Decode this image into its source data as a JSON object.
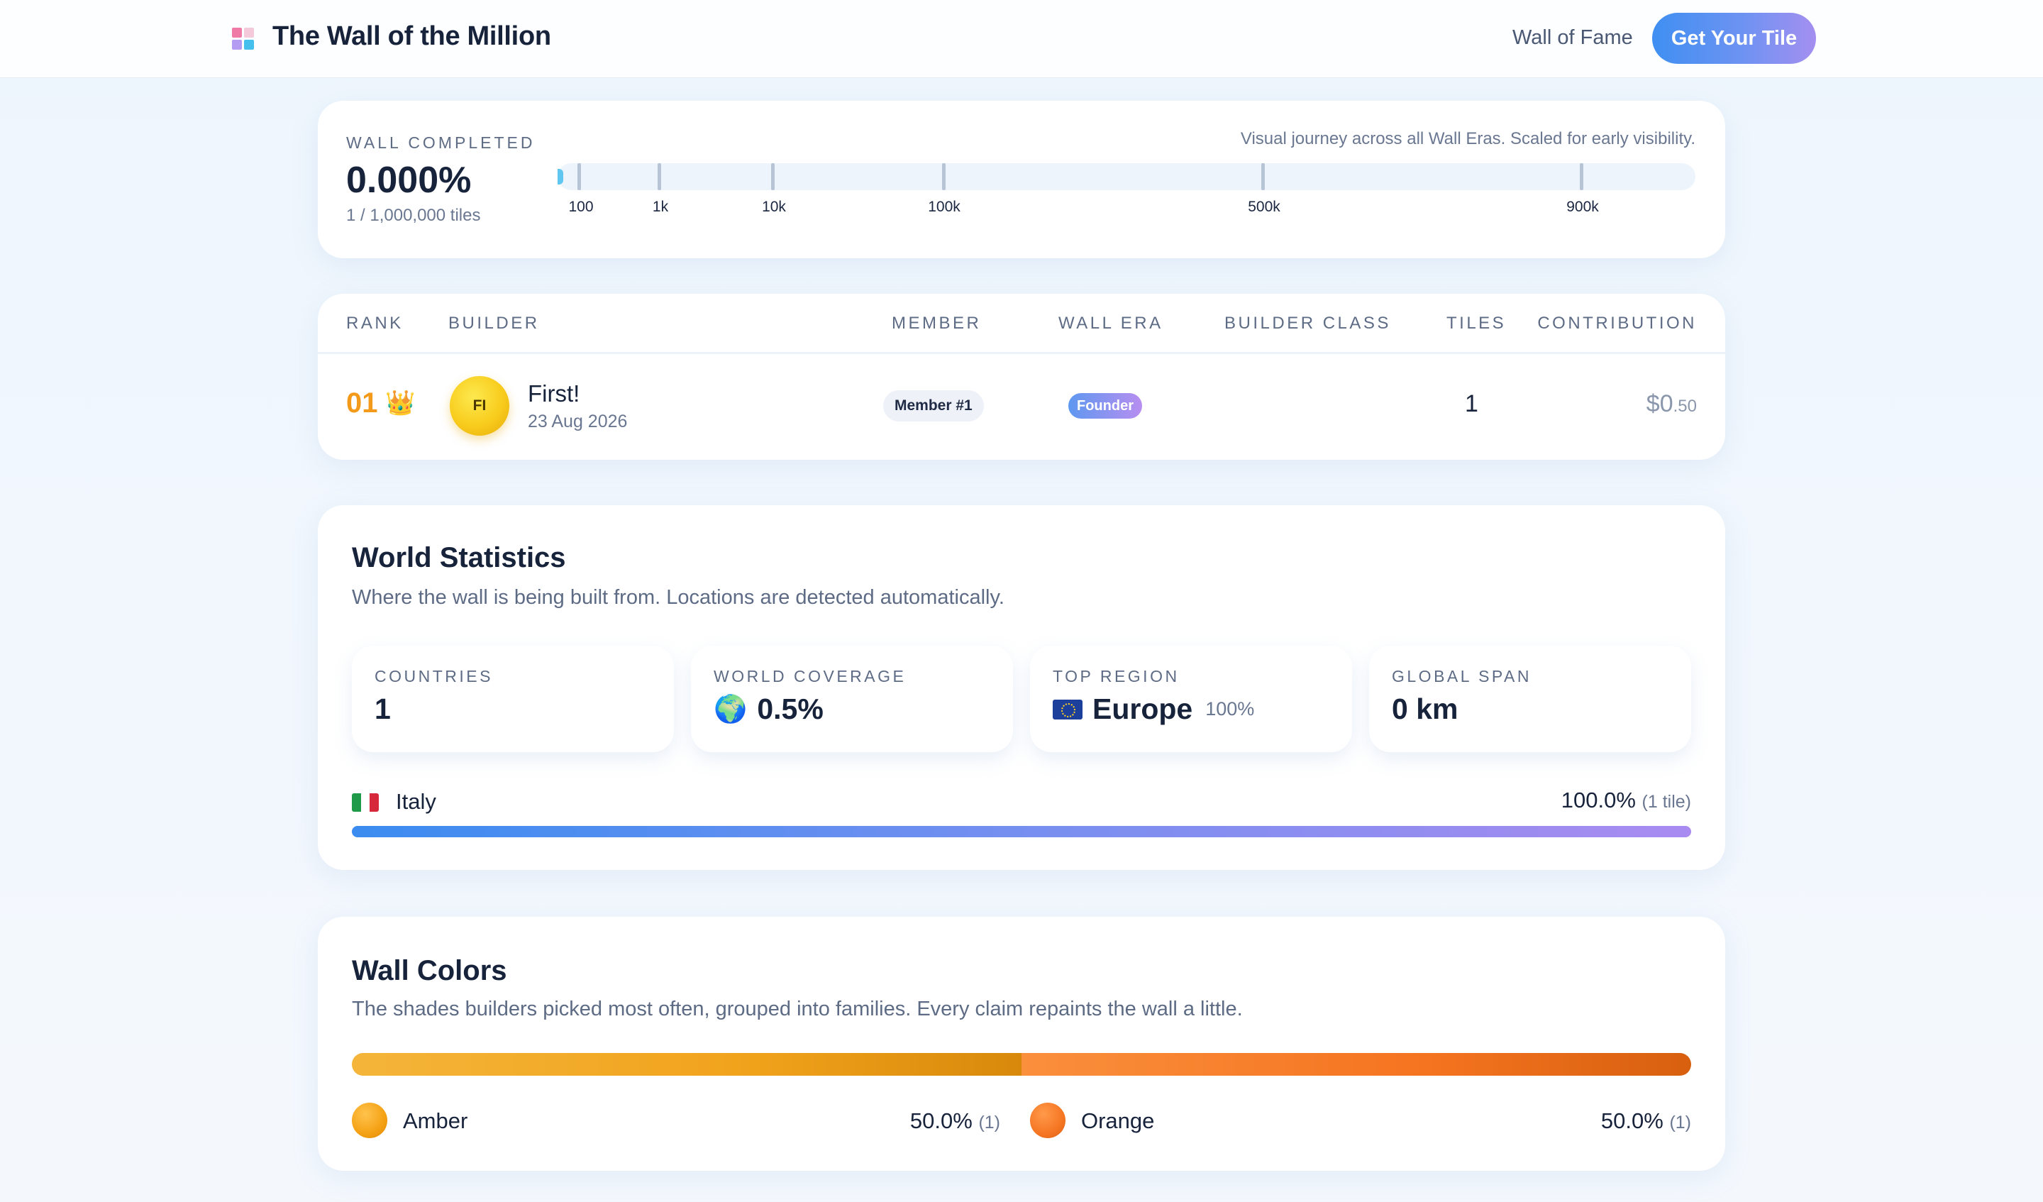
{
  "header": {
    "title": "The Wall of the Million",
    "nav_link": "Wall of Fame",
    "cta_label": "Get Your Tile"
  },
  "progress": {
    "label": "WALL COMPLETED",
    "value": "0.000%",
    "tiles_text": "1 / 1,000,000 tiles",
    "caption": "Visual journey across all Wall Eras. Scaled for early visibility.",
    "milestones": [
      "100",
      "1k",
      "10k",
      "100k",
      "500k",
      "900k"
    ],
    "fill_fraction": 1e-06
  },
  "leaderboard": {
    "columns": {
      "rank": "RANK",
      "builder": "BUILDER",
      "member": "MEMBER",
      "era": "WALL ERA",
      "class": "BUILDER CLASS",
      "tiles": "TILES",
      "contribution": "CONTRIBUTION"
    },
    "rows": [
      {
        "rank": "01",
        "crown": "👑",
        "initials": "FI",
        "name": "First!",
        "date": "23 Aug 2026",
        "member": "Member #1",
        "era": "Founder",
        "builder_class": "",
        "tiles": "1",
        "contribution_main": "$0",
        "contribution_cents": ".50"
      }
    ]
  },
  "world": {
    "title": "World Statistics",
    "subtitle": "Where the wall is being built from. Locations are detected automatically.",
    "stats": [
      {
        "label": "COUNTRIES",
        "value": "1"
      },
      {
        "label": "WORLD COVERAGE",
        "icon": "🌍",
        "value": "0.5%"
      },
      {
        "label": "TOP REGION",
        "icon": "eu-flag-icon",
        "value": "Europe",
        "extra": "100%"
      },
      {
        "label": "GLOBAL SPAN",
        "value": "0 km"
      }
    ],
    "countries": [
      {
        "name": "Italy",
        "percent": "100.0%",
        "count": "(1 tile)",
        "share": 1.0
      }
    ]
  },
  "colors": {
    "title": "Wall Colors",
    "subtitle": "The shades builders picked most often, grouped into families. Every claim repaints the wall a little.",
    "families": [
      {
        "name": "Amber",
        "percent": "50.0%",
        "count": "(1)",
        "share": 0.5,
        "color": "#f1a21b"
      },
      {
        "name": "Orange",
        "percent": "50.0%",
        "count": "(1)",
        "share": 0.5,
        "color": "#f57420"
      }
    ]
  }
}
